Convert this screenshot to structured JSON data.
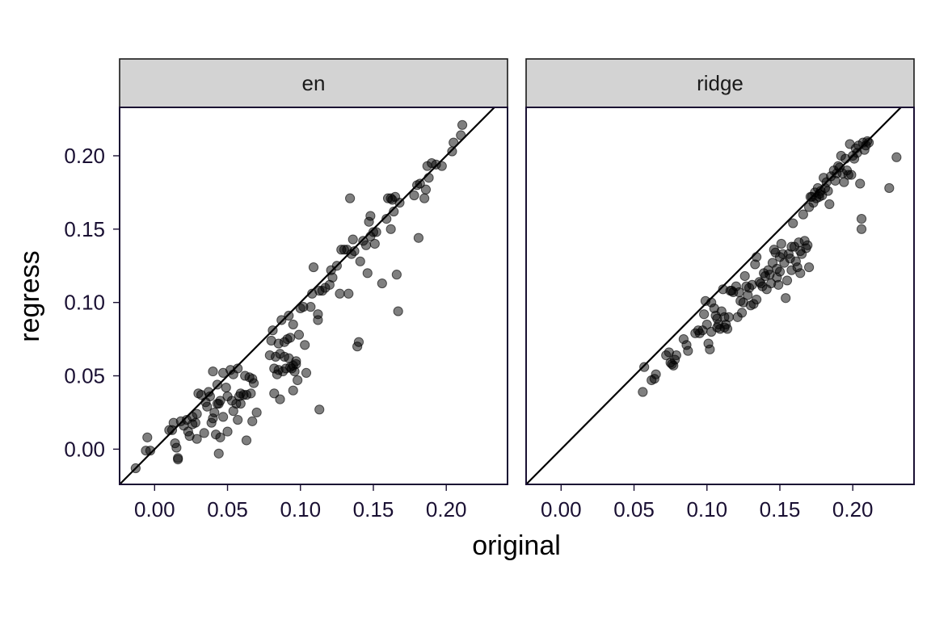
{
  "chart_data": {
    "type": "scatter",
    "xlabel": "original",
    "ylabel": "regress",
    "x_ticks": [
      0.0,
      0.05,
      0.1,
      0.15,
      0.2
    ],
    "y_ticks": [
      0.0,
      0.05,
      0.1,
      0.15,
      0.2
    ],
    "xlim": [
      -0.024,
      0.242
    ],
    "ylim": [
      -0.024,
      0.233
    ],
    "reference_line": "y = x",
    "point_color": "#000000",
    "panels": [
      {
        "label": "en",
        "points": [
          [
            -0.013,
            -0.013
          ],
          [
            -0.006,
            -0.001
          ],
          [
            -0.005,
            0.008
          ],
          [
            -0.003,
            -0.001
          ],
          [
            0.01,
            0.013
          ],
          [
            0.012,
            0.013
          ],
          [
            0.013,
            0.018
          ],
          [
            0.014,
            0.004
          ],
          [
            0.015,
            0.001
          ],
          [
            0.016,
            -0.006
          ],
          [
            0.016,
            -0.007
          ],
          [
            0.018,
            0.019
          ],
          [
            0.02,
            0.016
          ],
          [
            0.022,
            0.02
          ],
          [
            0.023,
            0.012
          ],
          [
            0.024,
            0.009
          ],
          [
            0.026,
            0.022
          ],
          [
            0.026,
            0.017
          ],
          [
            0.028,
            0.018
          ],
          [
            0.029,
            0.024
          ],
          [
            0.029,
            0.007
          ],
          [
            0.03,
            0.038
          ],
          [
            0.032,
            0.037
          ],
          [
            0.034,
            0.011
          ],
          [
            0.035,
            0.032
          ],
          [
            0.036,
            0.029
          ],
          [
            0.037,
            0.039
          ],
          [
            0.038,
            0.036
          ],
          [
            0.039,
            0.018
          ],
          [
            0.04,
            0.053
          ],
          [
            0.04,
            0.021
          ],
          [
            0.041,
            0.025
          ],
          [
            0.042,
            0.01
          ],
          [
            0.043,
            0.044
          ],
          [
            0.043,
            0.031
          ],
          [
            0.044,
            0.031
          ],
          [
            0.044,
            -0.003
          ],
          [
            0.045,
            0.008
          ],
          [
            0.045,
            0.033
          ],
          [
            0.047,
            0.052
          ],
          [
            0.047,
            0.022
          ],
          [
            0.049,
            0.042
          ],
          [
            0.05,
            0.012
          ],
          [
            0.05,
            0.036
          ],
          [
            0.052,
            0.054
          ],
          [
            0.053,
            0.033
          ],
          [
            0.054,
            0.026
          ],
          [
            0.054,
            0.051
          ],
          [
            0.056,
            0.031
          ],
          [
            0.057,
            0.02
          ],
          [
            0.057,
            0.055
          ],
          [
            0.058,
            0.036
          ],
          [
            0.059,
            0.031
          ],
          [
            0.059,
            0.038
          ],
          [
            0.061,
            0.037
          ],
          [
            0.062,
            0.05
          ],
          [
            0.063,
            0.037
          ],
          [
            0.063,
            0.006
          ],
          [
            0.065,
            0.049
          ],
          [
            0.066,
            0.038
          ],
          [
            0.067,
            0.048
          ],
          [
            0.067,
            0.019
          ],
          [
            0.068,
            0.045
          ],
          [
            0.07,
            0.025
          ],
          [
            0.079,
            0.064
          ],
          [
            0.08,
            0.074
          ],
          [
            0.081,
            0.081
          ],
          [
            0.082,
            0.038
          ],
          [
            0.082,
            0.055
          ],
          [
            0.083,
            0.063
          ],
          [
            0.084,
            0.051
          ],
          [
            0.085,
            0.072
          ],
          [
            0.085,
            0.054
          ],
          [
            0.086,
            0.034
          ],
          [
            0.086,
            0.065
          ],
          [
            0.087,
            0.088
          ],
          [
            0.088,
            0.053
          ],
          [
            0.089,
            0.073
          ],
          [
            0.089,
            0.063
          ],
          [
            0.09,
            0.055
          ],
          [
            0.091,
            0.075
          ],
          [
            0.092,
            0.091
          ],
          [
            0.092,
            0.062
          ],
          [
            0.093,
            0.056
          ],
          [
            0.093,
            0.076
          ],
          [
            0.094,
            0.055
          ],
          [
            0.095,
            0.04
          ],
          [
            0.095,
            0.057
          ],
          [
            0.095,
            0.085
          ],
          [
            0.096,
            0.053
          ],
          [
            0.097,
            0.06
          ],
          [
            0.097,
            0.058
          ],
          [
            0.098,
            0.047
          ],
          [
            0.099,
            0.078
          ],
          [
            0.1,
            0.096
          ],
          [
            0.102,
            0.097
          ],
          [
            0.103,
            0.071
          ],
          [
            0.104,
            0.052
          ],
          [
            0.107,
            0.097
          ],
          [
            0.108,
            0.106
          ],
          [
            0.109,
            0.124
          ],
          [
            0.112,
            0.088
          ],
          [
            0.112,
            0.092
          ],
          [
            0.113,
            0.027
          ],
          [
            0.113,
            0.108
          ],
          [
            0.115,
            0.108
          ],
          [
            0.117,
            0.11
          ],
          [
            0.12,
            0.112
          ],
          [
            0.121,
            0.122
          ],
          [
            0.122,
            0.117
          ],
          [
            0.125,
            0.125
          ],
          [
            0.127,
            0.106
          ],
          [
            0.128,
            0.136
          ],
          [
            0.13,
            0.136
          ],
          [
            0.132,
            0.136
          ],
          [
            0.133,
            0.106
          ],
          [
            0.134,
            0.171
          ],
          [
            0.135,
            0.133
          ],
          [
            0.136,
            0.143
          ],
          [
            0.137,
            0.135
          ],
          [
            0.139,
            0.07
          ],
          [
            0.14,
            0.073
          ],
          [
            0.141,
            0.128
          ],
          [
            0.143,
            0.142
          ],
          [
            0.145,
            0.139
          ],
          [
            0.146,
            0.12
          ],
          [
            0.147,
            0.155
          ],
          [
            0.148,
            0.145
          ],
          [
            0.148,
            0.159
          ],
          [
            0.15,
            0.148
          ],
          [
            0.151,
            0.14
          ],
          [
            0.152,
            0.148
          ],
          [
            0.156,
            0.113
          ],
          [
            0.159,
            0.157
          ],
          [
            0.16,
            0.171
          ],
          [
            0.162,
            0.171
          ],
          [
            0.162,
            0.15
          ],
          [
            0.163,
            0.17
          ],
          [
            0.164,
            0.162
          ],
          [
            0.165,
            0.172
          ],
          [
            0.166,
            0.119
          ],
          [
            0.167,
            0.094
          ],
          [
            0.168,
            0.168
          ],
          [
            0.178,
            0.173
          ],
          [
            0.18,
            0.18
          ],
          [
            0.181,
            0.144
          ],
          [
            0.182,
            0.181
          ],
          [
            0.185,
            0.171
          ],
          [
            0.186,
            0.177
          ],
          [
            0.187,
            0.193
          ],
          [
            0.188,
            0.185
          ],
          [
            0.19,
            0.195
          ],
          [
            0.193,
            0.194
          ],
          [
            0.197,
            0.193
          ],
          [
            0.204,
            0.203
          ],
          [
            0.205,
            0.209
          ],
          [
            0.21,
            0.214
          ],
          [
            0.211,
            0.221
          ]
        ]
      },
      {
        "label": "ridge",
        "points": [
          [
            0.056,
            0.039
          ],
          [
            0.057,
            0.056
          ],
          [
            0.062,
            0.047
          ],
          [
            0.064,
            0.048
          ],
          [
            0.065,
            0.051
          ],
          [
            0.072,
            0.064
          ],
          [
            0.074,
            0.066
          ],
          [
            0.075,
            0.059
          ],
          [
            0.076,
            0.058
          ],
          [
            0.077,
            0.057
          ],
          [
            0.078,
            0.061
          ],
          [
            0.079,
            0.064
          ],
          [
            0.084,
            0.075
          ],
          [
            0.086,
            0.071
          ],
          [
            0.087,
            0.067
          ],
          [
            0.092,
            0.079
          ],
          [
            0.094,
            0.081
          ],
          [
            0.095,
            0.079
          ],
          [
            0.097,
            0.081
          ],
          [
            0.098,
            0.092
          ],
          [
            0.099,
            0.101
          ],
          [
            0.1,
            0.085
          ],
          [
            0.101,
            0.072
          ],
          [
            0.102,
            0.068
          ],
          [
            0.103,
            0.08
          ],
          [
            0.103,
            0.1
          ],
          [
            0.105,
            0.096
          ],
          [
            0.106,
            0.091
          ],
          [
            0.107,
            0.083
          ],
          [
            0.107,
            0.089
          ],
          [
            0.108,
            0.085
          ],
          [
            0.109,
            0.082
          ],
          [
            0.11,
            0.094
          ],
          [
            0.111,
            0.109
          ],
          [
            0.112,
            0.083
          ],
          [
            0.112,
            0.09
          ],
          [
            0.113,
            0.085
          ],
          [
            0.114,
            0.082
          ],
          [
            0.115,
            0.09
          ],
          [
            0.116,
            0.108
          ],
          [
            0.117,
            0.108
          ],
          [
            0.118,
            0.107
          ],
          [
            0.12,
            0.111
          ],
          [
            0.121,
            0.09
          ],
          [
            0.122,
            0.107
          ],
          [
            0.123,
            0.101
          ],
          [
            0.124,
            0.093
          ],
          [
            0.125,
            0.1
          ],
          [
            0.126,
            0.118
          ],
          [
            0.127,
            0.111
          ],
          [
            0.128,
            0.105
          ],
          [
            0.129,
            0.11
          ],
          [
            0.13,
            0.098
          ],
          [
            0.131,
            0.112
          ],
          [
            0.132,
            0.099
          ],
          [
            0.133,
            0.126
          ],
          [
            0.134,
            0.102
          ],
          [
            0.134,
            0.131
          ],
          [
            0.136,
            0.114
          ],
          [
            0.137,
            0.113
          ],
          [
            0.138,
            0.111
          ],
          [
            0.139,
            0.12
          ],
          [
            0.14,
            0.118
          ],
          [
            0.141,
            0.109
          ],
          [
            0.142,
            0.122
          ],
          [
            0.143,
            0.119
          ],
          [
            0.144,
            0.113
          ],
          [
            0.145,
            0.127
          ],
          [
            0.146,
            0.136
          ],
          [
            0.147,
            0.134
          ],
          [
            0.148,
            0.117
          ],
          [
            0.148,
            0.123
          ],
          [
            0.149,
            0.112
          ],
          [
            0.15,
            0.121
          ],
          [
            0.15,
            0.131
          ],
          [
            0.151,
            0.14
          ],
          [
            0.152,
            0.133
          ],
          [
            0.153,
            0.127
          ],
          [
            0.154,
            0.103
          ],
          [
            0.155,
            0.115
          ],
          [
            0.156,
            0.133
          ],
          [
            0.157,
            0.13
          ],
          [
            0.158,
            0.122
          ],
          [
            0.158,
            0.138
          ],
          [
            0.159,
            0.154
          ],
          [
            0.16,
            0.138
          ],
          [
            0.161,
            0.128
          ],
          [
            0.162,
            0.124
          ],
          [
            0.163,
            0.141
          ],
          [
            0.164,
            0.135
          ],
          [
            0.164,
            0.12
          ],
          [
            0.165,
            0.133
          ],
          [
            0.166,
            0.16
          ],
          [
            0.167,
            0.142
          ],
          [
            0.168,
            0.137
          ],
          [
            0.169,
            0.139
          ],
          [
            0.17,
            0.165
          ],
          [
            0.17,
            0.124
          ],
          [
            0.171,
            0.172
          ],
          [
            0.172,
            0.172
          ],
          [
            0.173,
            0.168
          ],
          [
            0.174,
            0.175
          ],
          [
            0.175,
            0.171
          ],
          [
            0.176,
            0.178
          ],
          [
            0.177,
            0.172
          ],
          [
            0.177,
            0.174
          ],
          [
            0.178,
            0.176
          ],
          [
            0.179,
            0.173
          ],
          [
            0.18,
            0.185
          ],
          [
            0.181,
            0.178
          ],
          [
            0.182,
            0.182
          ],
          [
            0.183,
            0.176
          ],
          [
            0.184,
            0.167
          ],
          [
            0.185,
            0.186
          ],
          [
            0.187,
            0.19
          ],
          [
            0.188,
            0.183
          ],
          [
            0.189,
            0.188
          ],
          [
            0.19,
            0.193
          ],
          [
            0.191,
            0.192
          ],
          [
            0.192,
            0.2
          ],
          [
            0.193,
            0.188
          ],
          [
            0.194,
            0.182
          ],
          [
            0.195,
            0.198
          ],
          [
            0.196,
            0.19
          ],
          [
            0.197,
            0.187
          ],
          [
            0.198,
            0.208
          ],
          [
            0.199,
            0.187
          ],
          [
            0.2,
            0.2
          ],
          [
            0.201,
            0.198
          ],
          [
            0.202,
            0.205
          ],
          [
            0.203,
            0.202
          ],
          [
            0.204,
            0.207
          ],
          [
            0.205,
            0.181
          ],
          [
            0.206,
            0.157
          ],
          [
            0.206,
            0.15
          ],
          [
            0.207,
            0.209
          ],
          [
            0.208,
            0.204
          ],
          [
            0.209,
            0.207
          ],
          [
            0.21,
            0.21
          ],
          [
            0.211,
            0.209
          ],
          [
            0.225,
            0.178
          ],
          [
            0.23,
            0.199
          ]
        ]
      }
    ]
  }
}
